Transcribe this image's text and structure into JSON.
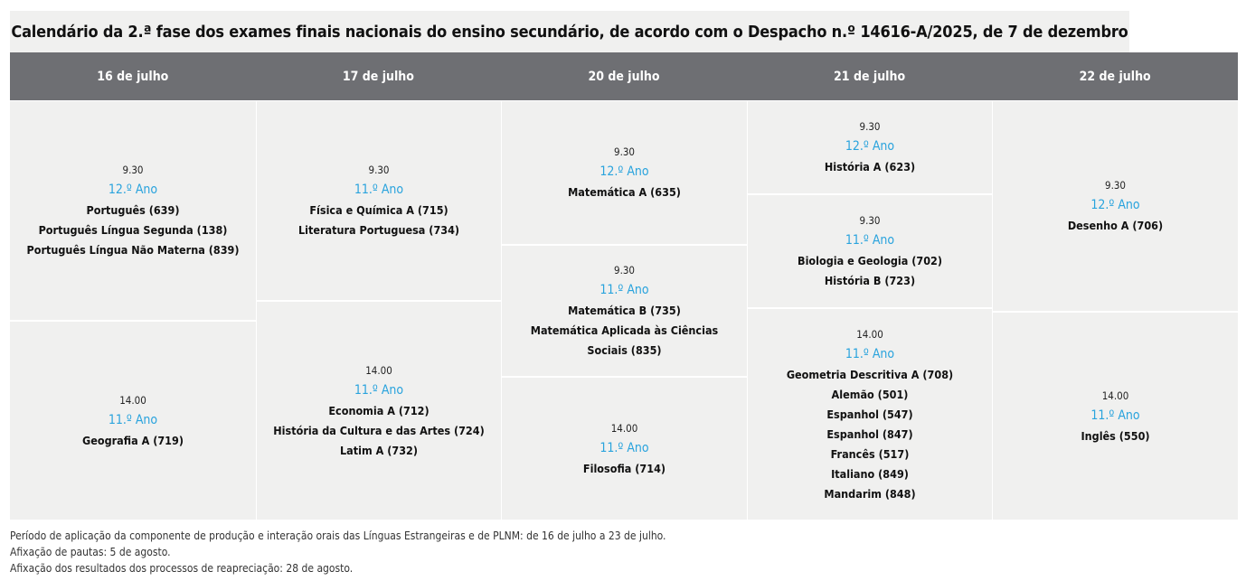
{
  "title": "Calendário da 2.ª fase dos exames finais nacionais do ensino secundário, de acordo com o Despacho n.º 14616-A/2025, de 7 de dezembro",
  "days": [
    {
      "label": "16 de julho",
      "slots": [
        {
          "time": "9.30",
          "year": "12.º Ano",
          "exams": [
            "Português (639)",
            "Português Língua Segunda (138)",
            "Português Língua Não Materna (839)"
          ]
        },
        {
          "time": "14.00",
          "year": "11.º Ano",
          "exams": [
            "Geografia A (719)"
          ]
        }
      ]
    },
    {
      "label": "17 de julho",
      "slots": [
        {
          "time": "9.30",
          "year": "11.º Ano",
          "exams": [
            "Física e Química A (715)",
            "Literatura Portuguesa (734)"
          ]
        },
        {
          "time": "14.00",
          "year": "11.º Ano",
          "exams": [
            "Economia A (712)",
            "História da Cultura e das Artes (724)",
            "Latim A (732)"
          ]
        }
      ]
    },
    {
      "label": "20 de julho",
      "slots": [
        {
          "time": "9.30",
          "year": "12.º Ano",
          "exams": [
            "Matemática A (635)"
          ]
        },
        {
          "time": "9.30",
          "year": "11.º Ano",
          "exams": [
            "Matemática B (735)",
            "Matemática Aplicada às Ciências",
            "Sociais (835)"
          ]
        },
        {
          "time": "14.00",
          "year": "11.º Ano",
          "exams": [
            "Filosofia (714)"
          ]
        }
      ]
    },
    {
      "label": "21 de julho",
      "slots": [
        {
          "time": "9.30",
          "year": "12.º Ano",
          "exams": [
            "História A (623)"
          ]
        },
        {
          "time": "9.30",
          "year": "11.º Ano",
          "exams": [
            "Biologia e Geologia (702)",
            "História B (723)"
          ]
        },
        {
          "time": "14.00",
          "year": "11.º Ano",
          "exams": [
            "Geometria Descritiva A (708)",
            "Alemão (501)",
            "Espanhol (547)",
            "Espanhol (847)",
            "Francês (517)",
            "Italiano (849)",
            "Mandarim (848)"
          ]
        }
      ]
    },
    {
      "label": "22 de julho",
      "slots": [
        {
          "time": "9.30",
          "year": "12.º Ano",
          "exams": [
            "Desenho A (706)"
          ]
        },
        {
          "time": "14.00",
          "year": "11.º Ano",
          "exams": [
            "Inglês (550)"
          ]
        }
      ]
    }
  ],
  "notes": [
    "Período de aplicação da componente de produção e interação orais das Línguas Estrangeiras e de PLNM: de 16 de julho a 23 de julho.",
    "Afixação de pautas: 5 de agosto.",
    "Afixação dos resultados dos processos de reapreciação: 28 de agosto."
  ],
  "colors": {
    "header": "#6e6f73",
    "cell": "#f0f0ef",
    "year": "#29a3dd"
  }
}
